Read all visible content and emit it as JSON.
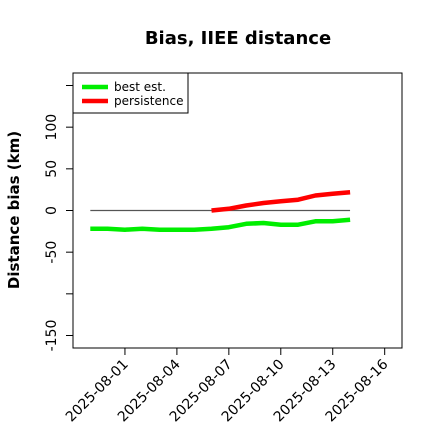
{
  "chart_data": {
    "type": "line",
    "title": "Bias, IIEE distance",
    "xlabel": "",
    "ylabel": "Distance bias (km)",
    "x_ticks": [
      "2025-08-01",
      "2025-08-04",
      "2025-08-07",
      "2025-08-10",
      "2025-08-13",
      "2025-08-16"
    ],
    "y_ticks": [
      -150,
      -50,
      0,
      50,
      100
    ],
    "xlim": [
      "2025-07-29",
      "2025-08-17"
    ],
    "ylim": [
      -165,
      165
    ],
    "grid": false,
    "legend_position": "top-left",
    "reference_line": {
      "y": 0,
      "from": "2025-07-30",
      "to": "2025-08-14",
      "color": "#555555"
    },
    "series": [
      {
        "name": "best est.",
        "color": "#00ee00",
        "x": [
          "2025-07-30",
          "2025-07-31",
          "2025-08-01",
          "2025-08-02",
          "2025-08-03",
          "2025-08-04",
          "2025-08-05",
          "2025-08-06",
          "2025-08-07",
          "2025-08-08",
          "2025-08-09",
          "2025-08-10",
          "2025-08-11",
          "2025-08-12",
          "2025-08-13",
          "2025-08-14"
        ],
        "values": [
          -22,
          -22,
          -23,
          -22,
          -23,
          -23,
          -23,
          -22,
          -20,
          -16,
          -15,
          -17,
          -17,
          -13,
          -13,
          -11
        ]
      },
      {
        "name": "persistence",
        "color": "#ff0000",
        "x": [
          "2025-08-06",
          "2025-08-07",
          "2025-08-08",
          "2025-08-09",
          "2025-08-10",
          "2025-08-11",
          "2025-08-12",
          "2025-08-13",
          "2025-08-14"
        ],
        "values": [
          0,
          2,
          6,
          9,
          11,
          13,
          18,
          20,
          22
        ]
      }
    ]
  }
}
